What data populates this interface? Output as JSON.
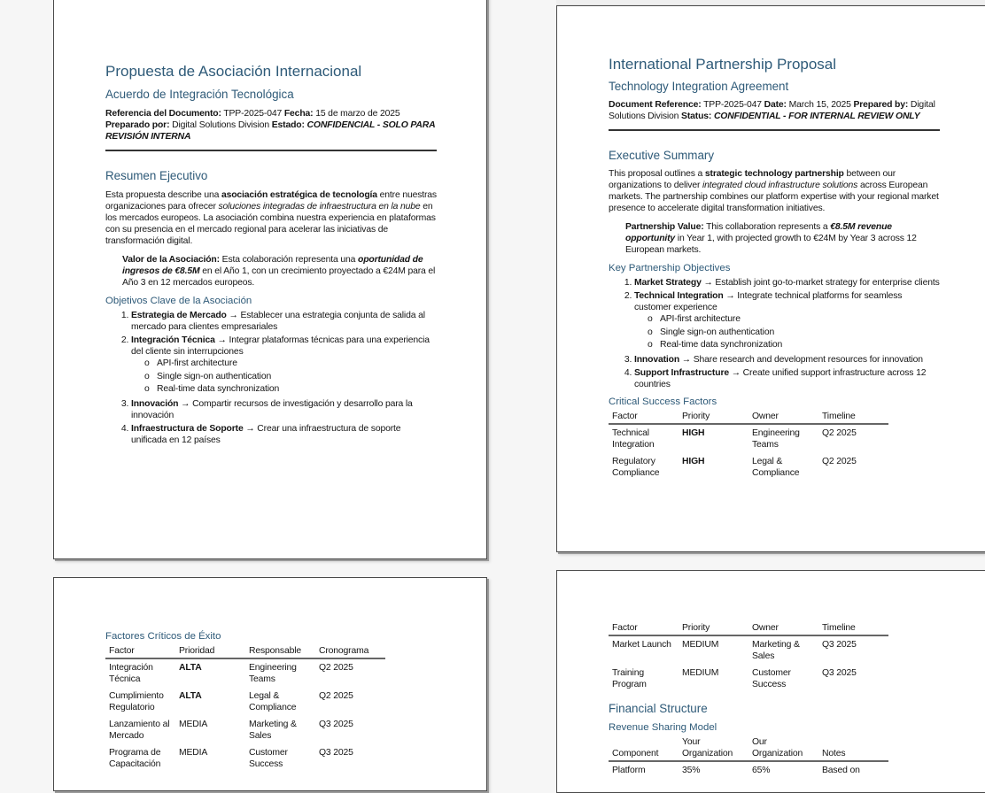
{
  "viewer": {
    "accent": "#2e5a78",
    "background": "#f6f6f6"
  },
  "es": {
    "title": "Propuesta de Asociación Internacional",
    "subtitle": "Acuerdo de Integración Tecnológica",
    "meta": {
      "ref_label": "Referencia del Documento:",
      "ref": " TPP-2025-047 ",
      "date_label": "Fecha:",
      "date": " 15 de marzo de 2025",
      "prep_label": "Preparado por:",
      "prep": " Digital Solutions Division ",
      "status_label": "Estado:",
      "status": " CONFIDENCIAL - SOLO PARA REVISIÓN INTERNA"
    },
    "summary_heading": "Resumen Ejecutivo",
    "summary": {
      "t1": "Esta propuesta describe una ",
      "b1": "asociación estratégica de tecnología",
      "t2": " entre nuestras organizaciones para ofrecer ",
      "i1": "soluciones integradas de infraestructura en la nube",
      "t3": " en los mercados europeos. La asociación combina nuestra experiencia en plataformas con su presencia en el mercado regional para acelerar las iniciativas de transformación digital."
    },
    "value": {
      "label": "Valor de la Asociación:",
      "t1": " Esta colaboración representa una ",
      "bi": "oportunidad de ingresos de €8.5M",
      "t2": " en el Año 1, con un crecimiento proyectado a €24M para el Año 3 en 12 mercados europeos."
    },
    "objectives_heading": "Objetivos Clave de la Asociación",
    "objectives": [
      {
        "title": "Estrategia de Mercado",
        "text": " → Establecer una estrategia conjunta de salida al mercado para clientes empresariales"
      },
      {
        "title": "Integración Técnica",
        "text": " → Integrar plataformas técnicas para una experiencia del cliente sin interrupciones",
        "sub": [
          "API-first architecture",
          "Single sign-on authentication",
          "Real-time data synchronization"
        ]
      },
      {
        "title": "Innovación",
        "text": " → Compartir recursos de investigación y desarrollo para la innovación"
      },
      {
        "title": "Infraestructura de Soporte",
        "text": " → Crear una infraestructura de soporte unificada en 12 países"
      }
    ],
    "factors_heading": "Factores Críticos de Éxito",
    "factors_table": {
      "headers": [
        "Factor",
        "Prioridad",
        "Responsable",
        "Cronograma"
      ],
      "rows": [
        [
          "Integración Técnica",
          "ALTA",
          "Engineering Teams",
          "Q2 2025"
        ],
        [
          "Cumplimiento Regulatorio",
          "ALTA",
          "Legal & Compliance",
          "Q2 2025"
        ],
        [
          "Lanzamiento al Mercado",
          "MEDIA",
          "Marketing & Sales",
          "Q3 2025"
        ],
        [
          "Programa de Capacitación",
          "MEDIA",
          "Customer Success",
          "Q3 2025"
        ]
      ],
      "bold_priority": [
        "ALTA"
      ]
    }
  },
  "en": {
    "title": "International Partnership Proposal",
    "subtitle": "Technology Integration Agreement",
    "meta": {
      "ref_label": "Document Reference:",
      "ref": " TPP-2025-047 ",
      "date_label": "Date:",
      "date": " March 15, 2025 ",
      "prep_label": "Prepared by:",
      "prep": " Digital Solutions Division ",
      "status_label": "Status:",
      "status": " CONFIDENTIAL - FOR INTERNAL REVIEW ONLY"
    },
    "summary_heading": "Executive Summary",
    "summary": {
      "t1": "This proposal outlines a ",
      "b1": "strategic technology partnership",
      "t2": " between our organizations to deliver ",
      "i1": "integrated cloud infrastructure solutions",
      "t3": " across European markets. The partnership combines our platform expertise with your regional market presence to accelerate digital transformation initiatives."
    },
    "value": {
      "label": "Partnership Value:",
      "t1": " This collaboration represents a ",
      "bi": "€8.5M revenue opportunity",
      "t2": " in Year 1, with projected growth to €24M by Year 3 across 12 European markets."
    },
    "objectives_heading": "Key Partnership Objectives",
    "objectives": [
      {
        "title": "Market Strategy",
        "text": " → Establish joint go-to-market strategy for enterprise clients"
      },
      {
        "title": "Technical Integration",
        "text": " → Integrate technical platforms for seamless customer experience",
        "sub": [
          "API-first architecture",
          "Single sign-on authentication",
          "Real-time data synchronization"
        ]
      },
      {
        "title": "Innovation",
        "text": " → Share research and development resources for innovation"
      },
      {
        "title": "Support Infrastructure",
        "text": " → Create unified support infrastructure across 12 countries"
      }
    ],
    "factors_heading": "Critical Success Factors",
    "factors_table": {
      "headers": [
        "Factor",
        "Priority",
        "Owner",
        "Timeline"
      ],
      "rows": [
        [
          "Technical Integration",
          "HIGH",
          "Engineering Teams",
          "Q2 2025"
        ],
        [
          "Regulatory Compliance",
          "HIGH",
          "Legal & Compliance",
          "Q2 2025"
        ]
      ],
      "bold_priority": [
        "HIGH"
      ]
    },
    "factors_table_cont": {
      "headers": [
        "Factor",
        "Priority",
        "Owner",
        "Timeline"
      ],
      "rows": [
        [
          "Market Launch",
          "MEDIUM",
          "Marketing & Sales",
          "Q3 2025"
        ],
        [
          "Training Program",
          "MEDIUM",
          "Customer Success",
          "Q3 2025"
        ]
      ]
    },
    "financial_heading": "Financial Structure",
    "revenue_heading": "Revenue Sharing Model",
    "revenue_table": {
      "headers": [
        "Component",
        "Your Organization",
        "Our Organization",
        "Notes"
      ],
      "rows": [
        [
          "Platform",
          "35%",
          "65%",
          "Based on"
        ]
      ]
    }
  }
}
